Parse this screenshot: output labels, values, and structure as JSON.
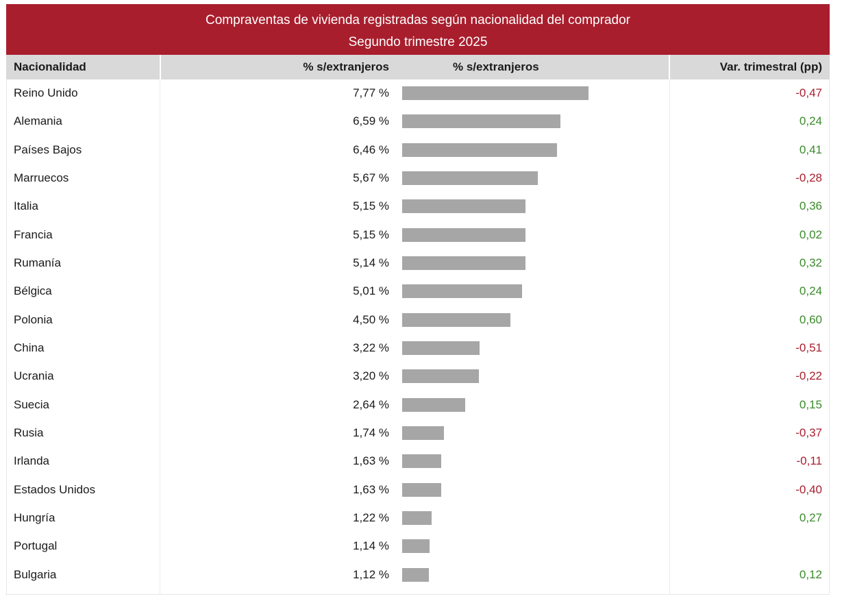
{
  "title": "Compraventas de vivienda registradas según nacionalidad del comprador",
  "subtitle": "Segundo trimestre 2025",
  "headers": {
    "nationality": "Nacionalidad",
    "pct_value": "% s/extranjeros",
    "pct_bar": "% s/extranjeros",
    "variation": "Var. trimestral (pp)"
  },
  "colors": {
    "header_band": "#a81e2d",
    "bar": "#a6a6a6",
    "positive": "#3a8a2a",
    "negative": "#a81e2d"
  },
  "rows": [
    {
      "name": "Reino Unido",
      "pct_label": "7,77 %",
      "var_label": "-0,47"
    },
    {
      "name": "Alemania",
      "pct_label": "6,59 %",
      "var_label": "0,24"
    },
    {
      "name": "Países Bajos",
      "pct_label": "6,46 %",
      "var_label": "0,41"
    },
    {
      "name": "Marruecos",
      "pct_label": "5,67 %",
      "var_label": "-0,28"
    },
    {
      "name": "Italia",
      "pct_label": "5,15 %",
      "var_label": "0,36"
    },
    {
      "name": "Francia",
      "pct_label": "5,15 %",
      "var_label": "0,02"
    },
    {
      "name": "Rumanía",
      "pct_label": "5,14 %",
      "var_label": "0,32"
    },
    {
      "name": "Bélgica",
      "pct_label": "5,01 %",
      "var_label": "0,24"
    },
    {
      "name": "Polonia",
      "pct_label": "4,50 %",
      "var_label": "0,60"
    },
    {
      "name": "China",
      "pct_label": "3,22 %",
      "var_label": "-0,51"
    },
    {
      "name": "Ucrania",
      "pct_label": "3,20 %",
      "var_label": "-0,22"
    },
    {
      "name": "Suecia",
      "pct_label": "2,64 %",
      "var_label": "0,15"
    },
    {
      "name": "Rusia",
      "pct_label": "1,74 %",
      "var_label": "-0,37"
    },
    {
      "name": "Irlanda",
      "pct_label": "1,63 %",
      "var_label": "-0,11"
    },
    {
      "name": "Estados Unidos",
      "pct_label": "1,63 %",
      "var_label": "-0,40"
    },
    {
      "name": "Hungría",
      "pct_label": "1,22 %",
      "var_label": "0,27"
    },
    {
      "name": "Portugal",
      "pct_label": "1,14 %",
      "var_label": ""
    },
    {
      "name": "Bulgaria",
      "pct_label": "1,12 %",
      "var_label": "0,12"
    }
  ],
  "chart_data": {
    "type": "bar",
    "orientation": "horizontal",
    "categories": [
      "Reino Unido",
      "Alemania",
      "Países Bajos",
      "Marruecos",
      "Italia",
      "Francia",
      "Rumanía",
      "Bélgica",
      "Polonia",
      "China",
      "Ucrania",
      "Suecia",
      "Rusia",
      "Irlanda",
      "Estados Unidos",
      "Hungría",
      "Portugal",
      "Bulgaria"
    ],
    "values": [
      7.77,
      6.59,
      6.46,
      5.67,
      5.15,
      5.15,
      5.14,
      5.01,
      4.5,
      3.22,
      3.2,
      2.64,
      1.74,
      1.63,
      1.63,
      1.22,
      1.14,
      1.12
    ],
    "variation": [
      -0.47,
      0.24,
      0.41,
      -0.28,
      0.36,
      0.02,
      0.32,
      0.24,
      0.6,
      -0.51,
      -0.22,
      0.15,
      -0.37,
      -0.11,
      -0.4,
      0.27,
      null,
      0.12
    ],
    "title": "Compraventas de vivienda registradas según nacionalidad del comprador",
    "subtitle": "Segundo trimestre 2025",
    "xlabel": "% s/extranjeros",
    "ylabel": "Nacionalidad",
    "xlim": [
      0,
      11
    ],
    "grid": false,
    "legend": "none"
  }
}
